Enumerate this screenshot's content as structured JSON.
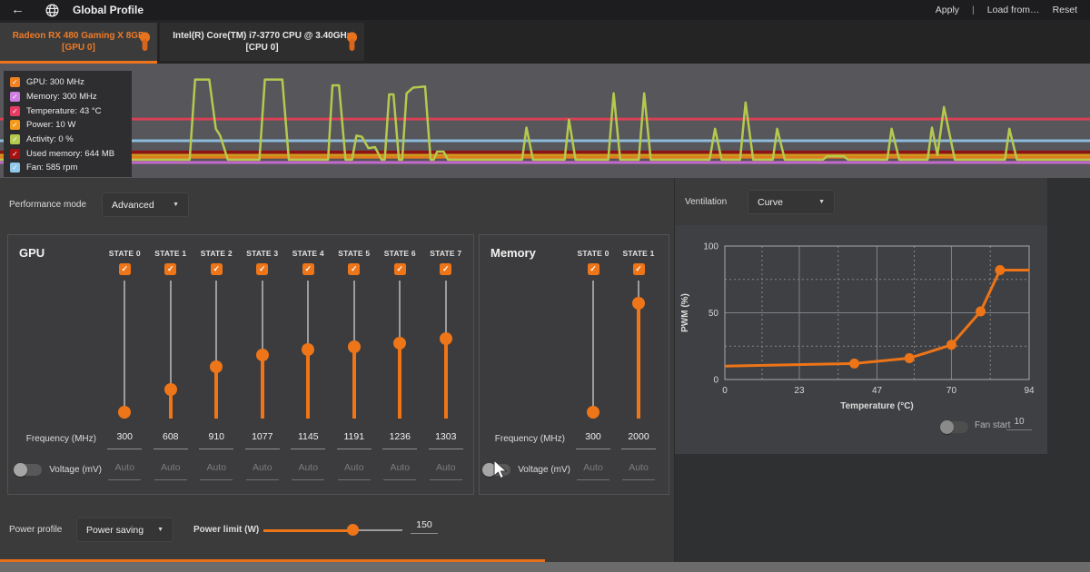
{
  "accent": "#ee7518",
  "topbar": {
    "back_icon": "←",
    "title": "Global Profile",
    "apply": "Apply",
    "divider": "|",
    "load_from": "Load from…",
    "reset": "Reset"
  },
  "tabs": [
    {
      "line1": "Radeon RX 480 Gaming X 8GB",
      "line2": "[GPU 0]",
      "selected": true
    },
    {
      "line1": "Intel(R) Core(TM) i7-3770 CPU @ 3.40GHz",
      "line2": "[CPU 0]",
      "selected": false
    }
  ],
  "monitor": {
    "legend": [
      {
        "label": "GPU: 300 MHz",
        "color": "#f08021"
      },
      {
        "label": "Memory: 300 MHz",
        "color": "#cf7fe0"
      },
      {
        "label": "Temperature: 43 °C",
        "color": "#e83b62"
      },
      {
        "label": "Power: 10 W",
        "color": "#f39a1b"
      },
      {
        "label": "Activity: 0 %",
        "color": "#b5c94f"
      },
      {
        "label": "Used memory: 644 MB",
        "color": "#a61212"
      },
      {
        "label": "Fan: 585 rpm",
        "color": "#90c8ea"
      }
    ],
    "chart_data": {
      "type": "line",
      "background": "#56565b",
      "flat_series": [
        {
          "name": "Temperature",
          "color": "#d84055",
          "y_pct": 48.5,
          "width": 3
        },
        {
          "name": "Fan",
          "color": "#8cbbdb",
          "y_pct": 67.5,
          "width": 3
        },
        {
          "name": "Used memory",
          "color": "#8e1212",
          "y_pct": 77.5,
          "width": 3.5
        },
        {
          "name": "Power",
          "color": "#d09a1e",
          "y_pct": 80,
          "width": 2.5
        },
        {
          "name": "GPU",
          "color": "#e87e18",
          "y_pct": 82,
          "width": 2.5
        },
        {
          "name": "Memory",
          "color": "#c469cc",
          "y_pct": 86.5,
          "width": 3
        }
      ],
      "activity_series": {
        "name": "Activity",
        "color": "#b5c94f",
        "width": 2.5,
        "points": [
          [
            0,
            84
          ],
          [
            13,
            84
          ],
          [
            17.4,
            84
          ],
          [
            17.9,
            14
          ],
          [
            19.2,
            14
          ],
          [
            19.8,
            57
          ],
          [
            20.2,
            63
          ],
          [
            20.9,
            84
          ],
          [
            23.8,
            84
          ],
          [
            24.3,
            14
          ],
          [
            25.9,
            14
          ],
          [
            26.5,
            84
          ],
          [
            30.1,
            84
          ],
          [
            30.5,
            19
          ],
          [
            31.1,
            19
          ],
          [
            31.7,
            84
          ],
          [
            32.3,
            84
          ],
          [
            32.7,
            63
          ],
          [
            33.2,
            64
          ],
          [
            33.8,
            74
          ],
          [
            34.4,
            73
          ],
          [
            35,
            84
          ],
          [
            35.3,
            84
          ],
          [
            35.7,
            27
          ],
          [
            36.1,
            27
          ],
          [
            36.6,
            84
          ],
          [
            36.9,
            84
          ],
          [
            37.3,
            26
          ],
          [
            37.9,
            21
          ],
          [
            39,
            20
          ],
          [
            39.5,
            84
          ],
          [
            39.8,
            84
          ],
          [
            40.1,
            77
          ],
          [
            40.7,
            77
          ],
          [
            41.1,
            84
          ],
          [
            47.9,
            84
          ],
          [
            48.3,
            56
          ],
          [
            48.9,
            84
          ],
          [
            51.8,
            84
          ],
          [
            52.2,
            49
          ],
          [
            52.8,
            84
          ],
          [
            55.8,
            84
          ],
          [
            56.3,
            26
          ],
          [
            56.9,
            84
          ],
          [
            58.6,
            84
          ],
          [
            59.1,
            26
          ],
          [
            59.7,
            84
          ],
          [
            65.1,
            84
          ],
          [
            65.6,
            57
          ],
          [
            66.2,
            84
          ],
          [
            67.9,
            84
          ],
          [
            68.4,
            34
          ],
          [
            69.1,
            84
          ],
          [
            70.9,
            84
          ],
          [
            71.3,
            57
          ],
          [
            72,
            84
          ],
          [
            75.5,
            84
          ],
          [
            75.9,
            81
          ],
          [
            77.4,
            81
          ],
          [
            77.8,
            84
          ],
          [
            81.4,
            84
          ],
          [
            81.8,
            57
          ],
          [
            82.5,
            84
          ],
          [
            85.1,
            84
          ],
          [
            85.5,
            56
          ],
          [
            86,
            80
          ],
          [
            86.6,
            38
          ],
          [
            87.6,
            84
          ],
          [
            92.2,
            84
          ],
          [
            92.6,
            57
          ],
          [
            93.3,
            84
          ],
          [
            100,
            84
          ]
        ]
      }
    }
  },
  "performance": {
    "label": "Performance mode",
    "value": "Advanced",
    "caret": "▼"
  },
  "gpu_panel": {
    "title": "GPU",
    "freq_label": "Frequency (MHz)",
    "volt_label": "Voltage (mV)",
    "auto_text": "Auto",
    "voltage_enabled": false,
    "slider_min": 300,
    "slider_max": 2000,
    "states": [
      {
        "label": "STATE 0",
        "checked": true,
        "frequency": 300
      },
      {
        "label": "STATE 1",
        "checked": true,
        "frequency": 608
      },
      {
        "label": "STATE 2",
        "checked": true,
        "frequency": 910
      },
      {
        "label": "STATE 3",
        "checked": true,
        "frequency": 1077
      },
      {
        "label": "STATE 4",
        "checked": true,
        "frequency": 1145
      },
      {
        "label": "STATE 5",
        "checked": true,
        "frequency": 1191
      },
      {
        "label": "STATE 6",
        "checked": true,
        "frequency": 1236
      },
      {
        "label": "STATE 7",
        "checked": true,
        "frequency": 1303
      }
    ]
  },
  "memory_panel": {
    "title": "Memory",
    "freq_label": "Frequency (MHz)",
    "volt_label": "Voltage (mV)",
    "auto_text": "Auto",
    "voltage_enabled": false,
    "slider_min": 300,
    "slider_max": 2250,
    "states": [
      {
        "label": "STATE 0",
        "checked": true,
        "frequency": 300
      },
      {
        "label": "STATE 1",
        "checked": true,
        "frequency": 2000
      }
    ]
  },
  "ventilation": {
    "label": "Ventilation",
    "value": "Curve",
    "caret": "▼",
    "fan_start_label": "Fan start",
    "fan_start_value": "10",
    "chart_data": {
      "type": "line",
      "xlabel": "Temperature (°C)",
      "ylabel": "PWM (%)",
      "xlim": [
        0,
        94
      ],
      "ylim": [
        0,
        100
      ],
      "x_ticks": [
        0,
        23,
        47,
        70,
        94
      ],
      "y_ticks": [
        0,
        50,
        100
      ],
      "minor_x": [
        11.5,
        35,
        58.5,
        82
      ],
      "minor_y": [
        25,
        75
      ],
      "line_color": "#ed7417",
      "points": [
        [
          0,
          10
        ],
        [
          40,
          12
        ],
        [
          57,
          16
        ],
        [
          70,
          26
        ],
        [
          79,
          51
        ],
        [
          85,
          82
        ],
        [
          94,
          82
        ]
      ],
      "dots": [
        [
          40,
          12
        ],
        [
          57,
          16
        ],
        [
          70,
          26
        ],
        [
          79,
          51
        ],
        [
          85,
          82
        ]
      ]
    }
  },
  "power": {
    "profile_label": "Power profile",
    "profile_value": "Power saving",
    "caret": "▼",
    "limit_label": "Power limit (W)",
    "limit_value": "150",
    "limit_fraction": 0.64
  }
}
